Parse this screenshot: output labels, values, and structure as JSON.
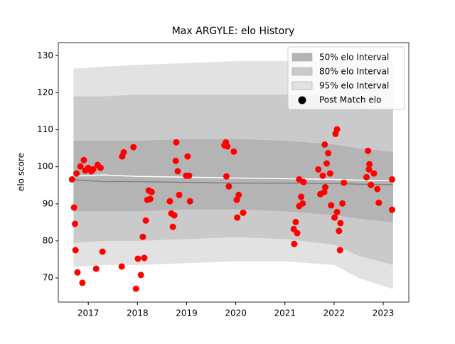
{
  "chart_data": {
    "type": "band-scatter",
    "title": "Max ARGYLE: elo History",
    "ylabel": "elo score",
    "xlim": [
      2016.39,
      2023.52
    ],
    "xticks": [
      2017,
      2018,
      2019,
      2020,
      2021,
      2022,
      2023
    ],
    "ylim": [
      63.5,
      133.5
    ],
    "yticks": [
      70,
      80,
      90,
      100,
      110,
      120,
      130
    ],
    "legend": "upper right",
    "x": [
      2016.7,
      2017.3,
      2018.0,
      2019.0,
      2020.0,
      2021.0,
      2022.0,
      2022.5,
      2023.2
    ],
    "bands": [
      {
        "name": "50% elo Interval",
        "color": "#b4b4b4",
        "upper": [
          107,
          107,
          107,
          107.5,
          107.5,
          107,
          106,
          105,
          104
        ],
        "lower": [
          88,
          88,
          88,
          88.5,
          88.5,
          88,
          87,
          86,
          85
        ]
      },
      {
        "name": "80% elo Interval",
        "color": "#cacaca",
        "upper": [
          119,
          119,
          119.5,
          119.5,
          119.5,
          119.5,
          119,
          117,
          116
        ],
        "lower": [
          79.5,
          80,
          80,
          80.5,
          81,
          80.5,
          79,
          76,
          73.5
        ]
      },
      {
        "name": "95% elo Interval",
        "color": "#e2e2e2",
        "upper": [
          126.5,
          127,
          127.5,
          128,
          128.5,
          128.5,
          128.5,
          128,
          128
        ],
        "lower": [
          73,
          73.5,
          73.5,
          74,
          74.5,
          74.5,
          73.5,
          70,
          67
        ]
      }
    ],
    "lines": [
      {
        "color": "#808080",
        "values": [
          96.5,
          96,
          96,
          95.8,
          95.6,
          95.6,
          95.5,
          95.3,
          95.2
        ]
      },
      {
        "color": "#ffffff",
        "values": [
          97.5,
          97.8,
          97.4,
          97.2,
          97,
          96.8,
          96.6,
          96.4,
          96.3
        ]
      }
    ],
    "points": {
      "name": "Post Match elo",
      "color": "#ff0000",
      "x": [
        2016.67,
        2016.71,
        2016.73,
        2016.74,
        2016.78,
        2016.76,
        2016.84,
        2016.88,
        2016.91,
        2016.94,
        2017.0,
        2017.06,
        2017.1,
        2017.16,
        2017.19,
        2017.25,
        2017.29,
        2017.68,
        2017.69,
        2017.72,
        2017.92,
        2017.97,
        2018.01,
        2018.07,
        2018.11,
        2018.14,
        2018.17,
        2018.2,
        2018.23,
        2018.26,
        2018.29,
        2018.66,
        2018.69,
        2018.72,
        2018.75,
        2018.78,
        2018.79,
        2018.82,
        2018.85,
        2018.99,
        2019.02,
        2019.05,
        2019.07,
        2019.77,
        2019.8,
        2019.81,
        2019.83,
        2019.86,
        2019.96,
        2020.02,
        2020.06,
        2020.03,
        2020.15,
        2021.18,
        2021.19,
        2021.22,
        2021.25,
        2021.29,
        2021.33,
        2021.36,
        2021.38,
        2021.29,
        2021.68,
        2021.72,
        2021.77,
        2021.8,
        2021.81,
        2021.82,
        2021.85,
        2021.88,
        2021.92,
        2021.94,
        2022.01,
        2022.03,
        2022.06,
        2022.06,
        2022.1,
        2022.12,
        2022.13,
        2022.17,
        2022.2,
        2022.66,
        2022.69,
        2022.71,
        2022.72,
        2022.75,
        2022.81,
        2022.88,
        2022.91,
        2023.18,
        2023.18
      ],
      "values": [
        96.6,
        89.0,
        84.6,
        77.5,
        71.5,
        98.2,
        100.1,
        68.7,
        101.8,
        99.0,
        99.7,
        98.8,
        99.3,
        72.5,
        100.5,
        99.7,
        77.1,
        73.1,
        102.8,
        103.9,
        105.3,
        67.1,
        75.2,
        70.8,
        81.1,
        75.4,
        85.5,
        91.1,
        93.6,
        91.3,
        93.2,
        90.7,
        87.4,
        83.8,
        86.9,
        101.6,
        106.6,
        98.8,
        92.4,
        97.6,
        102.8,
        97.6,
        90.7,
        105.8,
        106.6,
        97.4,
        105.5,
        94.7,
        104.1,
        91.1,
        92.4,
        86.3,
        87.6,
        83.2,
        79.2,
        85.1,
        82.1,
        89.4,
        91.9,
        90.1,
        95.9,
        96.6,
        99.3,
        92.6,
        97.6,
        93.2,
        106.0,
        94.5,
        100.9,
        103.7,
        98.2,
        89.6,
        86.3,
        108.9,
        110.1,
        87.8,
        82.7,
        77.5,
        84.8,
        90.1,
        95.7,
        97.2,
        104.3,
        99.3,
        100.7,
        95.1,
        98.2,
        94.0,
        90.3,
        96.6,
        88.4
      ]
    }
  }
}
